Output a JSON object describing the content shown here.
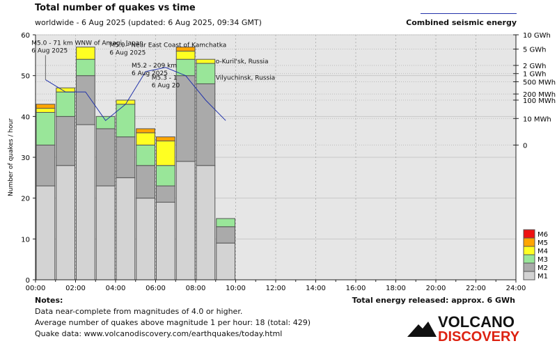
{
  "title": "Total number of quakes vs time",
  "subtitle": "worldwide -  6 Aug 2025  (updated: 6 Aug 2025, 09:34 GMT)",
  "energy_legend_label": "Combined seismic energy",
  "notes": {
    "heading": "Notes:",
    "line1": "Data near-complete from magnitudes of 4.0 or higher.",
    "line2": "Average number of quakes above magnitude 1 per hour: 18 (total: 429)",
    "line3": "Quake data: www.volcanodiscovery.com/earthquakes/today.html"
  },
  "energy_total": "Total energy released: approx. 6 GWh",
  "logo": {
    "line1": "VOLCANO",
    "line2": "DISCOVERY"
  },
  "chart_data": {
    "type": "bar",
    "stacked": true,
    "ylabel": "Number of quakes / hour",
    "ylim": [
      0,
      60
    ],
    "yticks": [
      0,
      10,
      20,
      30,
      40,
      50,
      60
    ],
    "xlim_hours": [
      0,
      24
    ],
    "xticks": [
      "00:00",
      "02:00",
      "04:00",
      "06:00",
      "08:00",
      "10:00",
      "12:00",
      "14:00",
      "16:00",
      "18:00",
      "20:00",
      "22:00",
      "24:00"
    ],
    "grid": true,
    "categories": [
      "00:00",
      "01:00",
      "02:00",
      "03:00",
      "04:00",
      "05:00",
      "06:00",
      "07:00",
      "08:00",
      "09:00"
    ],
    "series": [
      {
        "name": "M1",
        "color": "#d3d3d3",
        "values": [
          23,
          28,
          38,
          23,
          25,
          20,
          19,
          29,
          28,
          9
        ]
      },
      {
        "name": "M2",
        "color": "#aaaaaa",
        "values": [
          10,
          12,
          12,
          14,
          10,
          8,
          4,
          21,
          20,
          4
        ]
      },
      {
        "name": "M3",
        "color": "#99e699",
        "values": [
          8,
          6,
          4,
          3,
          8,
          5,
          5,
          4,
          5,
          2
        ]
      },
      {
        "name": "M4",
        "color": "#ffff22",
        "values": [
          1,
          1,
          3,
          0,
          1,
          3,
          6,
          2,
          1,
          0
        ]
      },
      {
        "name": "M5",
        "color": "#ffa500",
        "values": [
          1,
          0,
          0,
          0,
          0,
          1,
          1,
          1,
          0,
          0
        ]
      },
      {
        "name": "M6",
        "color": "#ee1111",
        "values": [
          0,
          0,
          0,
          0,
          0,
          0,
          0,
          0,
          0,
          0
        ]
      }
    ],
    "energy": {
      "axis_ticks": [
        "10 GWh",
        "5 GWh",
        "2 GWh",
        "1 GWh",
        "500 MWh",
        "200 MWh",
        "100 MWh",
        "10 MWh",
        "0"
      ],
      "axis_tick_y": [
        60,
        56.5,
        52.5,
        50.5,
        48.5,
        45.5,
        44,
        39.5,
        33
      ],
      "line_y": [
        49,
        46,
        46,
        39,
        43,
        51,
        52,
        50,
        44,
        39
      ]
    },
    "annotations": [
      {
        "line1": "M5.0 - 71 km WNW of Amagi, Japan",
        "line2": "6 Aug 2025"
      },
      {
        "line1": "M5.0 - Near East Coast of Kamchatka",
        "line2": "6 Aug 2025"
      },
      {
        "line1": "M5.2 - 209 km",
        "line2": "6 Aug 2025"
      },
      {
        "line1": "o-Kuril'sk, Russia",
        "line2": ""
      },
      {
        "line1": "M5.3 - 1",
        "line2": "6 Aug 20"
      },
      {
        "line1": "Vilyuchinsk, Russia",
        "line2": ""
      }
    ]
  }
}
